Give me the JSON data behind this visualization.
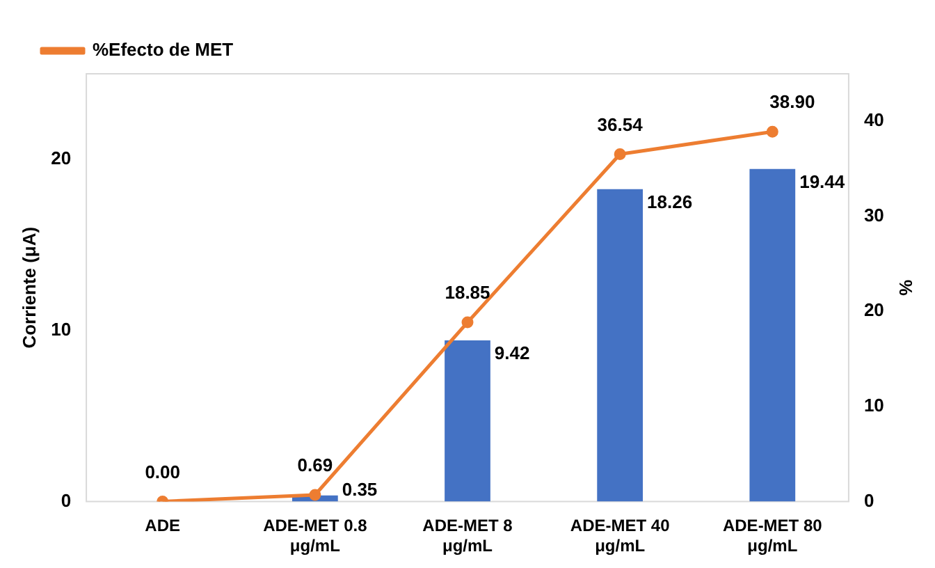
{
  "chart_data": {
    "type": "bar",
    "ylabel": "Corriente (μA)",
    "y2label": "%",
    "categories": [
      "ADE",
      "ADE-MET 0.8 μg/mL",
      "ADE-MET 8 μg/mL",
      "ADE-MET 40 μg/mL",
      "ADE-MET 80 μg/mL"
    ],
    "series": [
      {
        "color": "#4472c4",
        "values": [
          0,
          0.35,
          9.42,
          18.26,
          19.44
        ]
      },
      {
        "type": "line",
        "name": "%Efecto de MET",
        "axis": "y2",
        "color": "#ed7d31",
        "values": [
          0,
          0.69,
          18.85,
          36.54,
          38.9
        ],
        "value_labels": [
          "0.00",
          "0.69",
          "18.85",
          "36.54",
          "38.90"
        ]
      }
    ],
    "value_labels": [
      null,
      "0.35",
      "9.42",
      "18.26",
      "19.44"
    ],
    "ylim": [
      0,
      25
    ],
    "yticks": [
      0,
      10,
      20
    ],
    "y2lim": [
      0,
      45
    ],
    "y2ticks": [
      0,
      10,
      20,
      30,
      40
    ],
    "legend": "top left",
    "marker": "circle",
    "grid": false
  }
}
